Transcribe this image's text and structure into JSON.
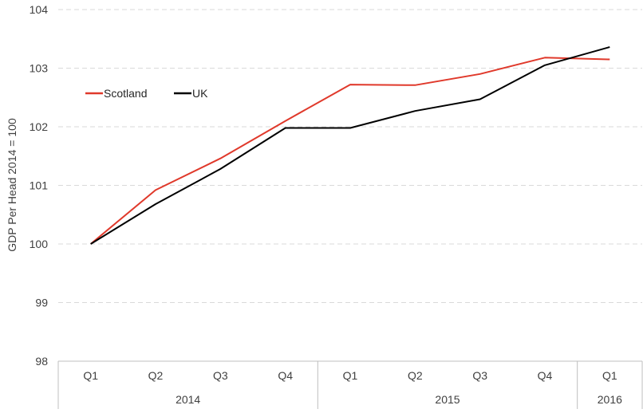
{
  "chart_data": {
    "type": "line",
    "title": "",
    "xlabel": "",
    "ylabel": "GDP Per Head 2014 = 100",
    "ylim": [
      98,
      104
    ],
    "yticks": [
      98,
      99,
      100,
      101,
      102,
      103,
      104
    ],
    "grid": true,
    "legend_position": "upper-left",
    "categories": [
      "Q1",
      "Q2",
      "Q3",
      "Q4",
      "Q1",
      "Q2",
      "Q3",
      "Q4",
      "Q1"
    ],
    "category_groups": [
      {
        "label": "2014",
        "count": 4
      },
      {
        "label": "2015",
        "count": 4
      },
      {
        "label": "2016",
        "count": 1
      }
    ],
    "series": [
      {
        "name": "Scotland",
        "color": "#e0392b",
        "values": [
          100.0,
          100.92,
          101.46,
          102.1,
          102.72,
          102.71,
          102.9,
          103.18,
          103.15
        ]
      },
      {
        "name": "UK",
        "color": "#000000",
        "values": [
          100.0,
          100.68,
          101.28,
          101.98,
          101.98,
          102.27,
          102.47,
          103.05,
          103.36
        ]
      }
    ]
  }
}
